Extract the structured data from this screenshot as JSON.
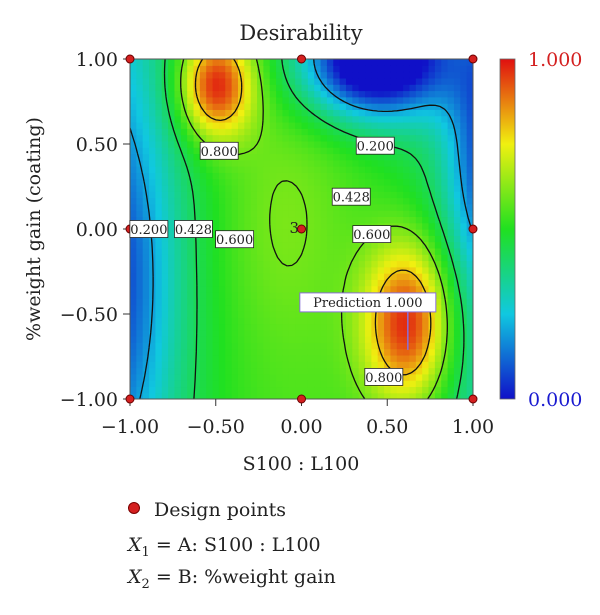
{
  "chart_data": {
    "type": "heatmap",
    "title": "Desirability",
    "xlabel": "S100 : L100",
    "ylabel": "%weight gain (coating)",
    "xlim": [
      -1.0,
      1.0
    ],
    "ylim": [
      -1.0,
      1.0
    ],
    "x_ticks": [
      "−1.00",
      "−0.50",
      "0.00",
      "0.50",
      "1.00"
    ],
    "y_ticks": [
      "−1.00",
      "−0.50",
      "0.00",
      "0.50",
      "1.00"
    ],
    "colorbar": {
      "min_label": "0.000",
      "max_label": "1.000",
      "min_color": "#1010c8",
      "max_color": "#e01010"
    },
    "design_points": [
      {
        "x": -1,
        "y": 1
      },
      {
        "x": 0,
        "y": 1
      },
      {
        "x": 1,
        "y": 1
      },
      {
        "x": -1,
        "y": 0
      },
      {
        "x": 0,
        "y": 0
      },
      {
        "x": 1,
        "y": 0
      },
      {
        "x": -1,
        "y": -1
      },
      {
        "x": 0,
        "y": -1
      },
      {
        "x": 1,
        "y": -1
      }
    ],
    "center_point_count_label": "3",
    "contour_labels": [
      {
        "text": "0.800",
        "x": -0.48,
        "y": 0.46
      },
      {
        "text": "0.200",
        "x": 0.43,
        "y": 0.49
      },
      {
        "text": "0.428",
        "x": 0.29,
        "y": 0.19
      },
      {
        "text": "0.600",
        "x": 0.41,
        "y": -0.03
      },
      {
        "text": "0.200",
        "x": -0.89,
        "y": 0.0
      },
      {
        "text": "0.428",
        "x": -0.63,
        "y": 0.0
      },
      {
        "text": "0.600",
        "x": -0.39,
        "y": -0.06
      },
      {
        "text": "0.800",
        "x": 0.48,
        "y": -0.87
      }
    ],
    "prediction": {
      "label": "Prediction 1.000",
      "x": 0.62,
      "y": -0.57,
      "value": 1.0
    },
    "legend": {
      "design_points_label": "Design points",
      "x1_symbol": "X",
      "x1_sub": "1",
      "x1_text": " = A: S100 : L100",
      "x2_symbol": "X",
      "x2_sub": "2",
      "x2_text": " = B: %weight gain"
    }
  }
}
